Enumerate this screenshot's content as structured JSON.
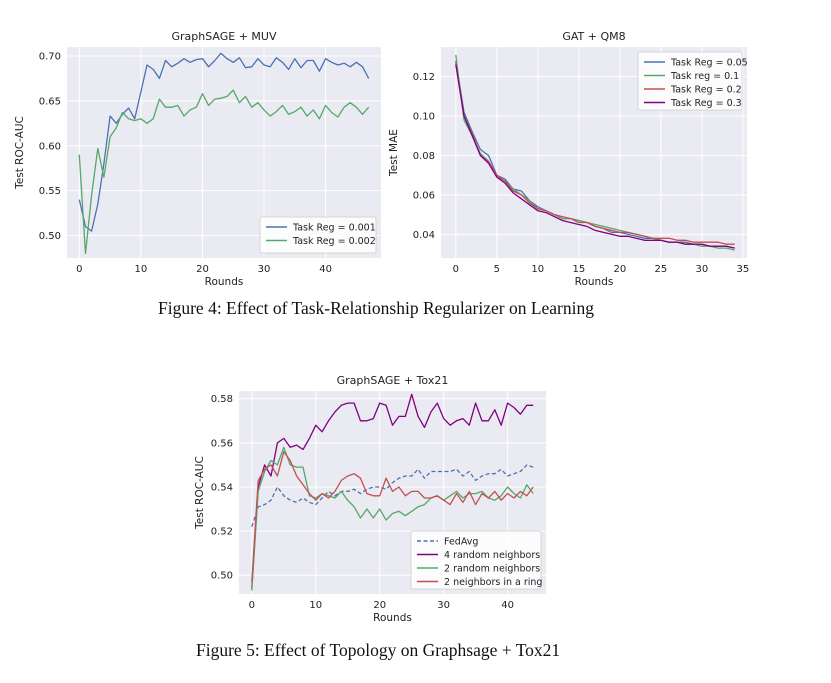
{
  "captions": {
    "figure4": "Figure 4: Effect of Task-Relationship Regularizer on Learning",
    "figure5": "Figure 5: Effect of Topology on Graphsage + Tox21"
  },
  "chart_data": [
    {
      "type": "line",
      "title": "GraphSAGE + MUV",
      "xlabel": "Rounds",
      "ylabel": "Test ROC-AUC",
      "xlim": [
        -2,
        49
      ],
      "ylim": [
        0.475,
        0.71
      ],
      "xticks": [
        0,
        10,
        20,
        30,
        40
      ],
      "yticks": [
        0.5,
        0.55,
        0.6,
        0.65,
        0.7
      ],
      "grid": true,
      "background": "#EAEAF2",
      "legend_position": "lower right",
      "series": [
        {
          "name": "Task Reg = 0.001",
          "color": "#4C72B0",
          "dash": false,
          "x": [
            0,
            1,
            2,
            3,
            4,
            5,
            6,
            7,
            8,
            9,
            10,
            11,
            12,
            13,
            14,
            15,
            16,
            17,
            18,
            19,
            20,
            21,
            22,
            23,
            24,
            25,
            26,
            27,
            28,
            29,
            30,
            31,
            32,
            33,
            34,
            35,
            36,
            37,
            38,
            39,
            40,
            41,
            42,
            43,
            44,
            45,
            46,
            47
          ],
          "y": [
            0.54,
            0.51,
            0.505,
            0.535,
            0.58,
            0.633,
            0.625,
            0.635,
            0.642,
            0.63,
            0.66,
            0.69,
            0.685,
            0.675,
            0.695,
            0.688,
            0.692,
            0.697,
            0.693,
            0.696,
            0.697,
            0.688,
            0.695,
            0.703,
            0.697,
            0.693,
            0.698,
            0.687,
            0.688,
            0.697,
            0.69,
            0.688,
            0.698,
            0.693,
            0.685,
            0.697,
            0.687,
            0.695,
            0.695,
            0.683,
            0.697,
            0.693,
            0.69,
            0.692,
            0.688,
            0.693,
            0.688,
            0.675
          ]
        },
        {
          "name": "Task Reg = 0.002",
          "color": "#55A868",
          "dash": false,
          "x": [
            0,
            1,
            2,
            3,
            4,
            5,
            6,
            7,
            8,
            9,
            10,
            11,
            12,
            13,
            14,
            15,
            16,
            17,
            18,
            19,
            20,
            21,
            22,
            23,
            24,
            25,
            26,
            27,
            28,
            29,
            30,
            31,
            32,
            33,
            34,
            35,
            36,
            37,
            38,
            39,
            40,
            41,
            42,
            43,
            44,
            45,
            46,
            47
          ],
          "y": [
            0.59,
            0.48,
            0.545,
            0.597,
            0.565,
            0.61,
            0.62,
            0.637,
            0.63,
            0.628,
            0.63,
            0.625,
            0.63,
            0.652,
            0.643,
            0.643,
            0.645,
            0.633,
            0.64,
            0.643,
            0.658,
            0.645,
            0.652,
            0.653,
            0.655,
            0.662,
            0.648,
            0.655,
            0.643,
            0.648,
            0.64,
            0.633,
            0.638,
            0.645,
            0.635,
            0.638,
            0.643,
            0.633,
            0.64,
            0.63,
            0.645,
            0.637,
            0.632,
            0.643,
            0.648,
            0.643,
            0.635,
            0.643
          ]
        }
      ]
    },
    {
      "type": "line",
      "title": "GAT + QM8",
      "xlabel": "Rounds",
      "ylabel": "Test MAE",
      "xlim": [
        -1.8,
        35.5
      ],
      "ylim": [
        0.028,
        0.135
      ],
      "xticks": [
        0,
        5,
        10,
        15,
        20,
        25,
        30,
        35
      ],
      "yticks": [
        0.04,
        0.06,
        0.08,
        0.1,
        0.12
      ],
      "grid": true,
      "background": "#EAEAF2",
      "legend_position": "upper right",
      "series": [
        {
          "name": "Task Reg = 0.05",
          "color": "#4C72B0",
          "dash": false,
          "x": [
            0,
            1,
            2,
            3,
            4,
            5,
            6,
            7,
            8,
            9,
            10,
            11,
            12,
            13,
            14,
            15,
            16,
            17,
            18,
            19,
            20,
            21,
            22,
            23,
            24,
            25,
            26,
            27,
            28,
            29,
            30,
            31,
            32,
            33,
            34
          ],
          "y": [
            0.128,
            0.102,
            0.092,
            0.083,
            0.08,
            0.07,
            0.068,
            0.063,
            0.062,
            0.057,
            0.054,
            0.052,
            0.05,
            0.048,
            0.048,
            0.047,
            0.046,
            0.044,
            0.043,
            0.041,
            0.041,
            0.04,
            0.039,
            0.038,
            0.038,
            0.037,
            0.036,
            0.036,
            0.036,
            0.035,
            0.035,
            0.034,
            0.034,
            0.034,
            0.033
          ]
        },
        {
          "name": "Task reg = 0.1",
          "color": "#55A868",
          "dash": false,
          "x": [
            0,
            1,
            2,
            3,
            4,
            5,
            6,
            7,
            8,
            9,
            10,
            11,
            12,
            13,
            14,
            15,
            16,
            17,
            18,
            19,
            20,
            21,
            22,
            23,
            24,
            25,
            26,
            27,
            28,
            29,
            30,
            31,
            32,
            33,
            34
          ],
          "y": [
            0.131,
            0.098,
            0.09,
            0.081,
            0.077,
            0.069,
            0.067,
            0.063,
            0.06,
            0.057,
            0.053,
            0.052,
            0.05,
            0.048,
            0.048,
            0.047,
            0.046,
            0.045,
            0.044,
            0.043,
            0.042,
            0.041,
            0.04,
            0.039,
            0.038,
            0.037,
            0.036,
            0.036,
            0.035,
            0.035,
            0.034,
            0.034,
            0.033,
            0.033,
            0.032
          ]
        },
        {
          "name": "Task Reg = 0.2",
          "color": "#C44E52",
          "dash": false,
          "x": [
            0,
            1,
            2,
            3,
            4,
            5,
            6,
            7,
            8,
            9,
            10,
            11,
            12,
            13,
            14,
            15,
            16,
            17,
            18,
            19,
            20,
            21,
            22,
            23,
            24,
            25,
            26,
            27,
            28,
            29,
            30,
            31,
            32,
            33,
            34
          ],
          "y": [
            0.127,
            0.1,
            0.091,
            0.08,
            0.077,
            0.07,
            0.067,
            0.062,
            0.06,
            0.056,
            0.053,
            0.052,
            0.05,
            0.049,
            0.048,
            0.046,
            0.046,
            0.044,
            0.043,
            0.042,
            0.041,
            0.041,
            0.04,
            0.039,
            0.038,
            0.038,
            0.038,
            0.037,
            0.037,
            0.036,
            0.036,
            0.036,
            0.036,
            0.035,
            0.035
          ]
        },
        {
          "name": "Task Reg = 0.3",
          "color": "#800080",
          "dash": false,
          "x": [
            0,
            1,
            2,
            3,
            4,
            5,
            6,
            7,
            8,
            9,
            10,
            11,
            12,
            13,
            14,
            15,
            16,
            17,
            18,
            19,
            20,
            21,
            22,
            23,
            24,
            25,
            26,
            27,
            28,
            29,
            30,
            31,
            32,
            33,
            34
          ],
          "y": [
            0.126,
            0.1,
            0.09,
            0.08,
            0.076,
            0.069,
            0.066,
            0.061,
            0.058,
            0.055,
            0.052,
            0.051,
            0.049,
            0.047,
            0.046,
            0.045,
            0.044,
            0.042,
            0.041,
            0.04,
            0.039,
            0.039,
            0.038,
            0.037,
            0.037,
            0.037,
            0.036,
            0.036,
            0.035,
            0.035,
            0.035,
            0.034,
            0.034,
            0.034,
            0.033
          ]
        }
      ]
    },
    {
      "type": "line",
      "title": "GraphSAGE + Tox21",
      "xlabel": "Rounds",
      "ylabel": "Test ROC-AUC",
      "xlim": [
        -2,
        46
      ],
      "ylim": [
        0.4915,
        0.5835
      ],
      "xticks": [
        0,
        10,
        20,
        30,
        40
      ],
      "yticks": [
        0.5,
        0.52,
        0.54,
        0.56,
        0.58
      ],
      "grid": true,
      "background": "#EAEAF2",
      "legend_position": "lower right",
      "series": [
        {
          "name": "FedAvg",
          "color": "#4C72B0",
          "dash": true,
          "x": [
            0,
            1,
            2,
            3,
            4,
            5,
            6,
            7,
            8,
            9,
            10,
            11,
            12,
            13,
            14,
            15,
            16,
            17,
            18,
            19,
            20,
            21,
            22,
            23,
            24,
            25,
            26,
            27,
            28,
            29,
            30,
            31,
            32,
            33,
            34,
            35,
            36,
            37,
            38,
            39,
            40,
            41,
            42,
            43,
            44
          ],
          "y": [
            0.522,
            0.531,
            0.532,
            0.534,
            0.54,
            0.536,
            0.534,
            0.533,
            0.535,
            0.533,
            0.532,
            0.535,
            0.538,
            0.536,
            0.538,
            0.538,
            0.539,
            0.537,
            0.539,
            0.54,
            0.54,
            0.539,
            0.542,
            0.544,
            0.545,
            0.545,
            0.548,
            0.544,
            0.547,
            0.547,
            0.547,
            0.547,
            0.548,
            0.545,
            0.547,
            0.543,
            0.545,
            0.546,
            0.546,
            0.548,
            0.545,
            0.546,
            0.547,
            0.55,
            0.549
          ]
        },
        {
          "name": "4 random neighbors",
          "color": "#800080",
          "dash": false,
          "x": [
            0,
            1,
            2,
            3,
            4,
            5,
            6,
            7,
            8,
            9,
            10,
            11,
            12,
            13,
            14,
            15,
            16,
            17,
            18,
            19,
            20,
            21,
            22,
            23,
            24,
            25,
            26,
            27,
            28,
            29,
            30,
            31,
            32,
            33,
            34,
            35,
            36,
            37,
            38,
            39,
            40,
            41,
            42,
            43,
            44
          ],
          "y": [
            0.494,
            0.54,
            0.55,
            0.545,
            0.56,
            0.562,
            0.558,
            0.559,
            0.557,
            0.562,
            0.568,
            0.565,
            0.57,
            0.574,
            0.577,
            0.578,
            0.578,
            0.57,
            0.57,
            0.571,
            0.578,
            0.577,
            0.568,
            0.572,
            0.572,
            0.582,
            0.572,
            0.567,
            0.574,
            0.578,
            0.571,
            0.568,
            0.57,
            0.571,
            0.568,
            0.578,
            0.57,
            0.57,
            0.575,
            0.568,
            0.578,
            0.576,
            0.573,
            0.577,
            0.577
          ]
        },
        {
          "name": "2 random neighbors",
          "color": "#55A868",
          "dash": false,
          "x": [
            0,
            1,
            2,
            3,
            4,
            5,
            6,
            7,
            8,
            9,
            10,
            11,
            12,
            13,
            14,
            15,
            16,
            17,
            18,
            19,
            20,
            21,
            22,
            23,
            24,
            25,
            26,
            27,
            28,
            29,
            30,
            31,
            32,
            33,
            34,
            35,
            36,
            37,
            38,
            39,
            40,
            41,
            42,
            43,
            44
          ],
          "y": [
            0.493,
            0.538,
            0.547,
            0.552,
            0.55,
            0.558,
            0.55,
            0.549,
            0.549,
            0.536,
            0.535,
            0.537,
            0.536,
            0.535,
            0.538,
            0.534,
            0.531,
            0.526,
            0.53,
            0.526,
            0.53,
            0.525,
            0.528,
            0.529,
            0.527,
            0.529,
            0.531,
            0.532,
            0.535,
            0.536,
            0.534,
            0.536,
            0.538,
            0.535,
            0.537,
            0.537,
            0.538,
            0.535,
            0.534,
            0.536,
            0.54,
            0.537,
            0.535,
            0.541,
            0.537
          ]
        },
        {
          "name": "2 neighbors in a ring",
          "color": "#C44E52",
          "dash": false,
          "x": [
            0,
            1,
            2,
            3,
            4,
            5,
            6,
            7,
            8,
            9,
            10,
            11,
            12,
            13,
            14,
            15,
            16,
            17,
            18,
            19,
            20,
            21,
            22,
            23,
            24,
            25,
            26,
            27,
            28,
            29,
            30,
            31,
            32,
            33,
            34,
            35,
            36,
            37,
            38,
            39,
            40,
            41,
            42,
            43,
            44
          ],
          "y": [
            0.497,
            0.543,
            0.548,
            0.55,
            0.545,
            0.556,
            0.552,
            0.545,
            0.541,
            0.537,
            0.534,
            0.537,
            0.535,
            0.538,
            0.543,
            0.545,
            0.546,
            0.544,
            0.537,
            0.536,
            0.536,
            0.544,
            0.538,
            0.54,
            0.536,
            0.538,
            0.538,
            0.535,
            0.535,
            0.536,
            0.534,
            0.532,
            0.537,
            0.533,
            0.538,
            0.532,
            0.537,
            0.535,
            0.538,
            0.534,
            0.537,
            0.535,
            0.538,
            0.536,
            0.54
          ]
        }
      ]
    }
  ]
}
